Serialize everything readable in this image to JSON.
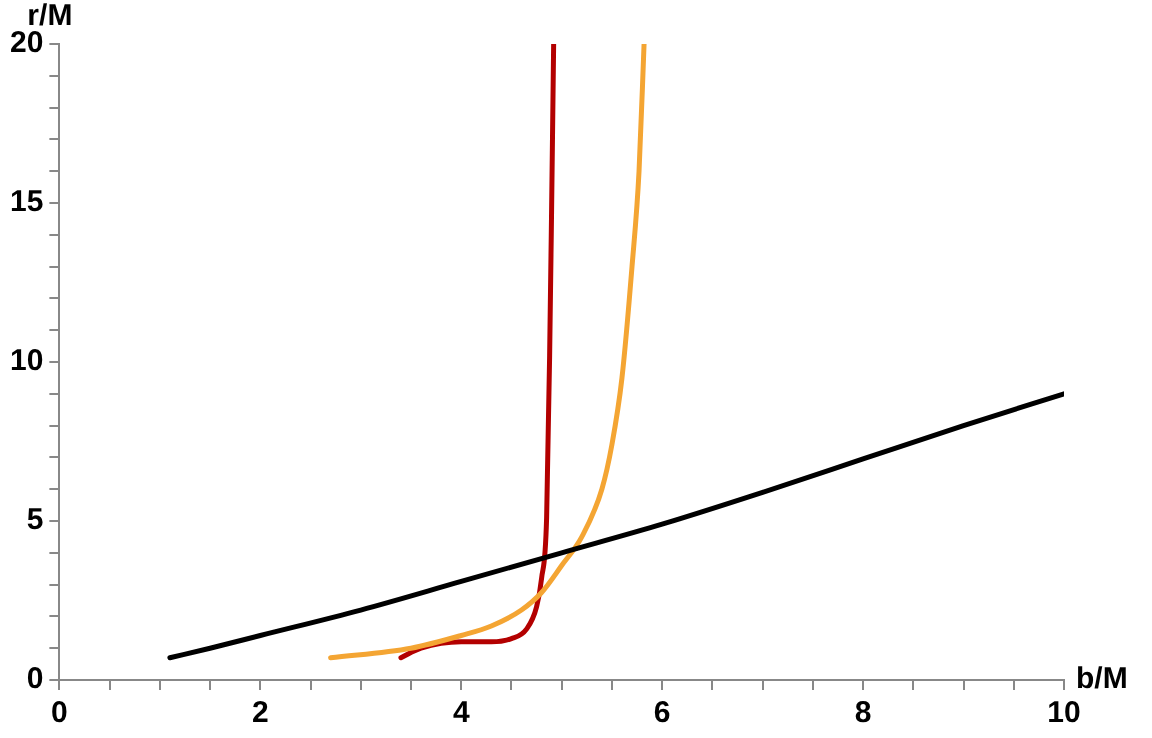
{
  "chart_data": {
    "type": "line",
    "xlabel": "b/M",
    "ylabel": "r/M",
    "xlim": [
      0,
      10
    ],
    "ylim": [
      0,
      20
    ],
    "xticks": [
      0,
      {
        "value": 0.5,
        "label": null
      },
      {
        "value": 1,
        "label": null
      },
      {
        "value": 1.5,
        "label": null
      },
      2,
      {
        "value": 2.5,
        "label": null
      },
      {
        "value": 3,
        "label": null
      },
      {
        "value": 3.5,
        "label": null
      },
      4,
      {
        "value": 4.5,
        "label": null
      },
      {
        "value": 5,
        "label": null
      },
      {
        "value": 5.5,
        "label": null
      },
      6,
      {
        "value": 6.5,
        "label": null
      },
      {
        "value": 7,
        "label": null
      },
      {
        "value": 7.5,
        "label": null
      },
      8,
      {
        "value": 8.5,
        "label": null
      },
      {
        "value": 9,
        "label": null
      },
      {
        "value": 9.5,
        "label": null
      },
      10
    ],
    "yticks": [
      0,
      {
        "value": 1,
        "label": null
      },
      {
        "value": 2,
        "label": null
      },
      {
        "value": 3,
        "label": null
      },
      {
        "value": 4,
        "label": null
      },
      5,
      {
        "value": 6,
        "label": null
      },
      {
        "value": 7,
        "label": null
      },
      {
        "value": 8,
        "label": null
      },
      {
        "value": 9,
        "label": null
      },
      10,
      {
        "value": 11,
        "label": null
      },
      {
        "value": 12,
        "label": null
      },
      {
        "value": 13,
        "label": null
      },
      {
        "value": 14,
        "label": null
      },
      15,
      {
        "value": 16,
        "label": null
      },
      {
        "value": 17,
        "label": null
      },
      {
        "value": 18,
        "label": null
      },
      {
        "value": 19,
        "label": null
      },
      20
    ],
    "grid": false,
    "legend": false,
    "marker": "none",
    "line_style": "solid",
    "series": [
      {
        "color": "#000000",
        "x": [
          1.1,
          1.5,
          2,
          3,
          4,
          5,
          6,
          7,
          8,
          9,
          10
        ],
        "values": [
          0.7,
          1.0,
          1.4,
          2.2,
          3.1,
          4.0,
          4.9,
          5.9,
          6.95,
          8.0,
          9.0
        ]
      },
      {
        "color": "#f4a533",
        "x": [
          2.7,
          3.5,
          4,
          4.3,
          4.6,
          4.8,
          5.0,
          5.2,
          5.4,
          5.5,
          5.6,
          5.7,
          5.77,
          5.82
        ],
        "values": [
          0.7,
          1.0,
          1.4,
          1.7,
          2.2,
          2.75,
          3.6,
          4.5,
          6.0,
          7.4,
          9.5,
          13,
          16,
          20
        ]
      },
      {
        "color": "#b30000",
        "x": [
          3.4,
          3.6,
          4.0,
          4.3,
          4.5,
          4.65,
          4.75,
          4.8,
          4.85,
          4.88,
          4.9,
          4.92
        ],
        "values": [
          0.7,
          1.0,
          1.2,
          1.2,
          1.3,
          1.6,
          2.3,
          3.2,
          5.1,
          10.2,
          14.9,
          20
        ]
      }
    ]
  }
}
